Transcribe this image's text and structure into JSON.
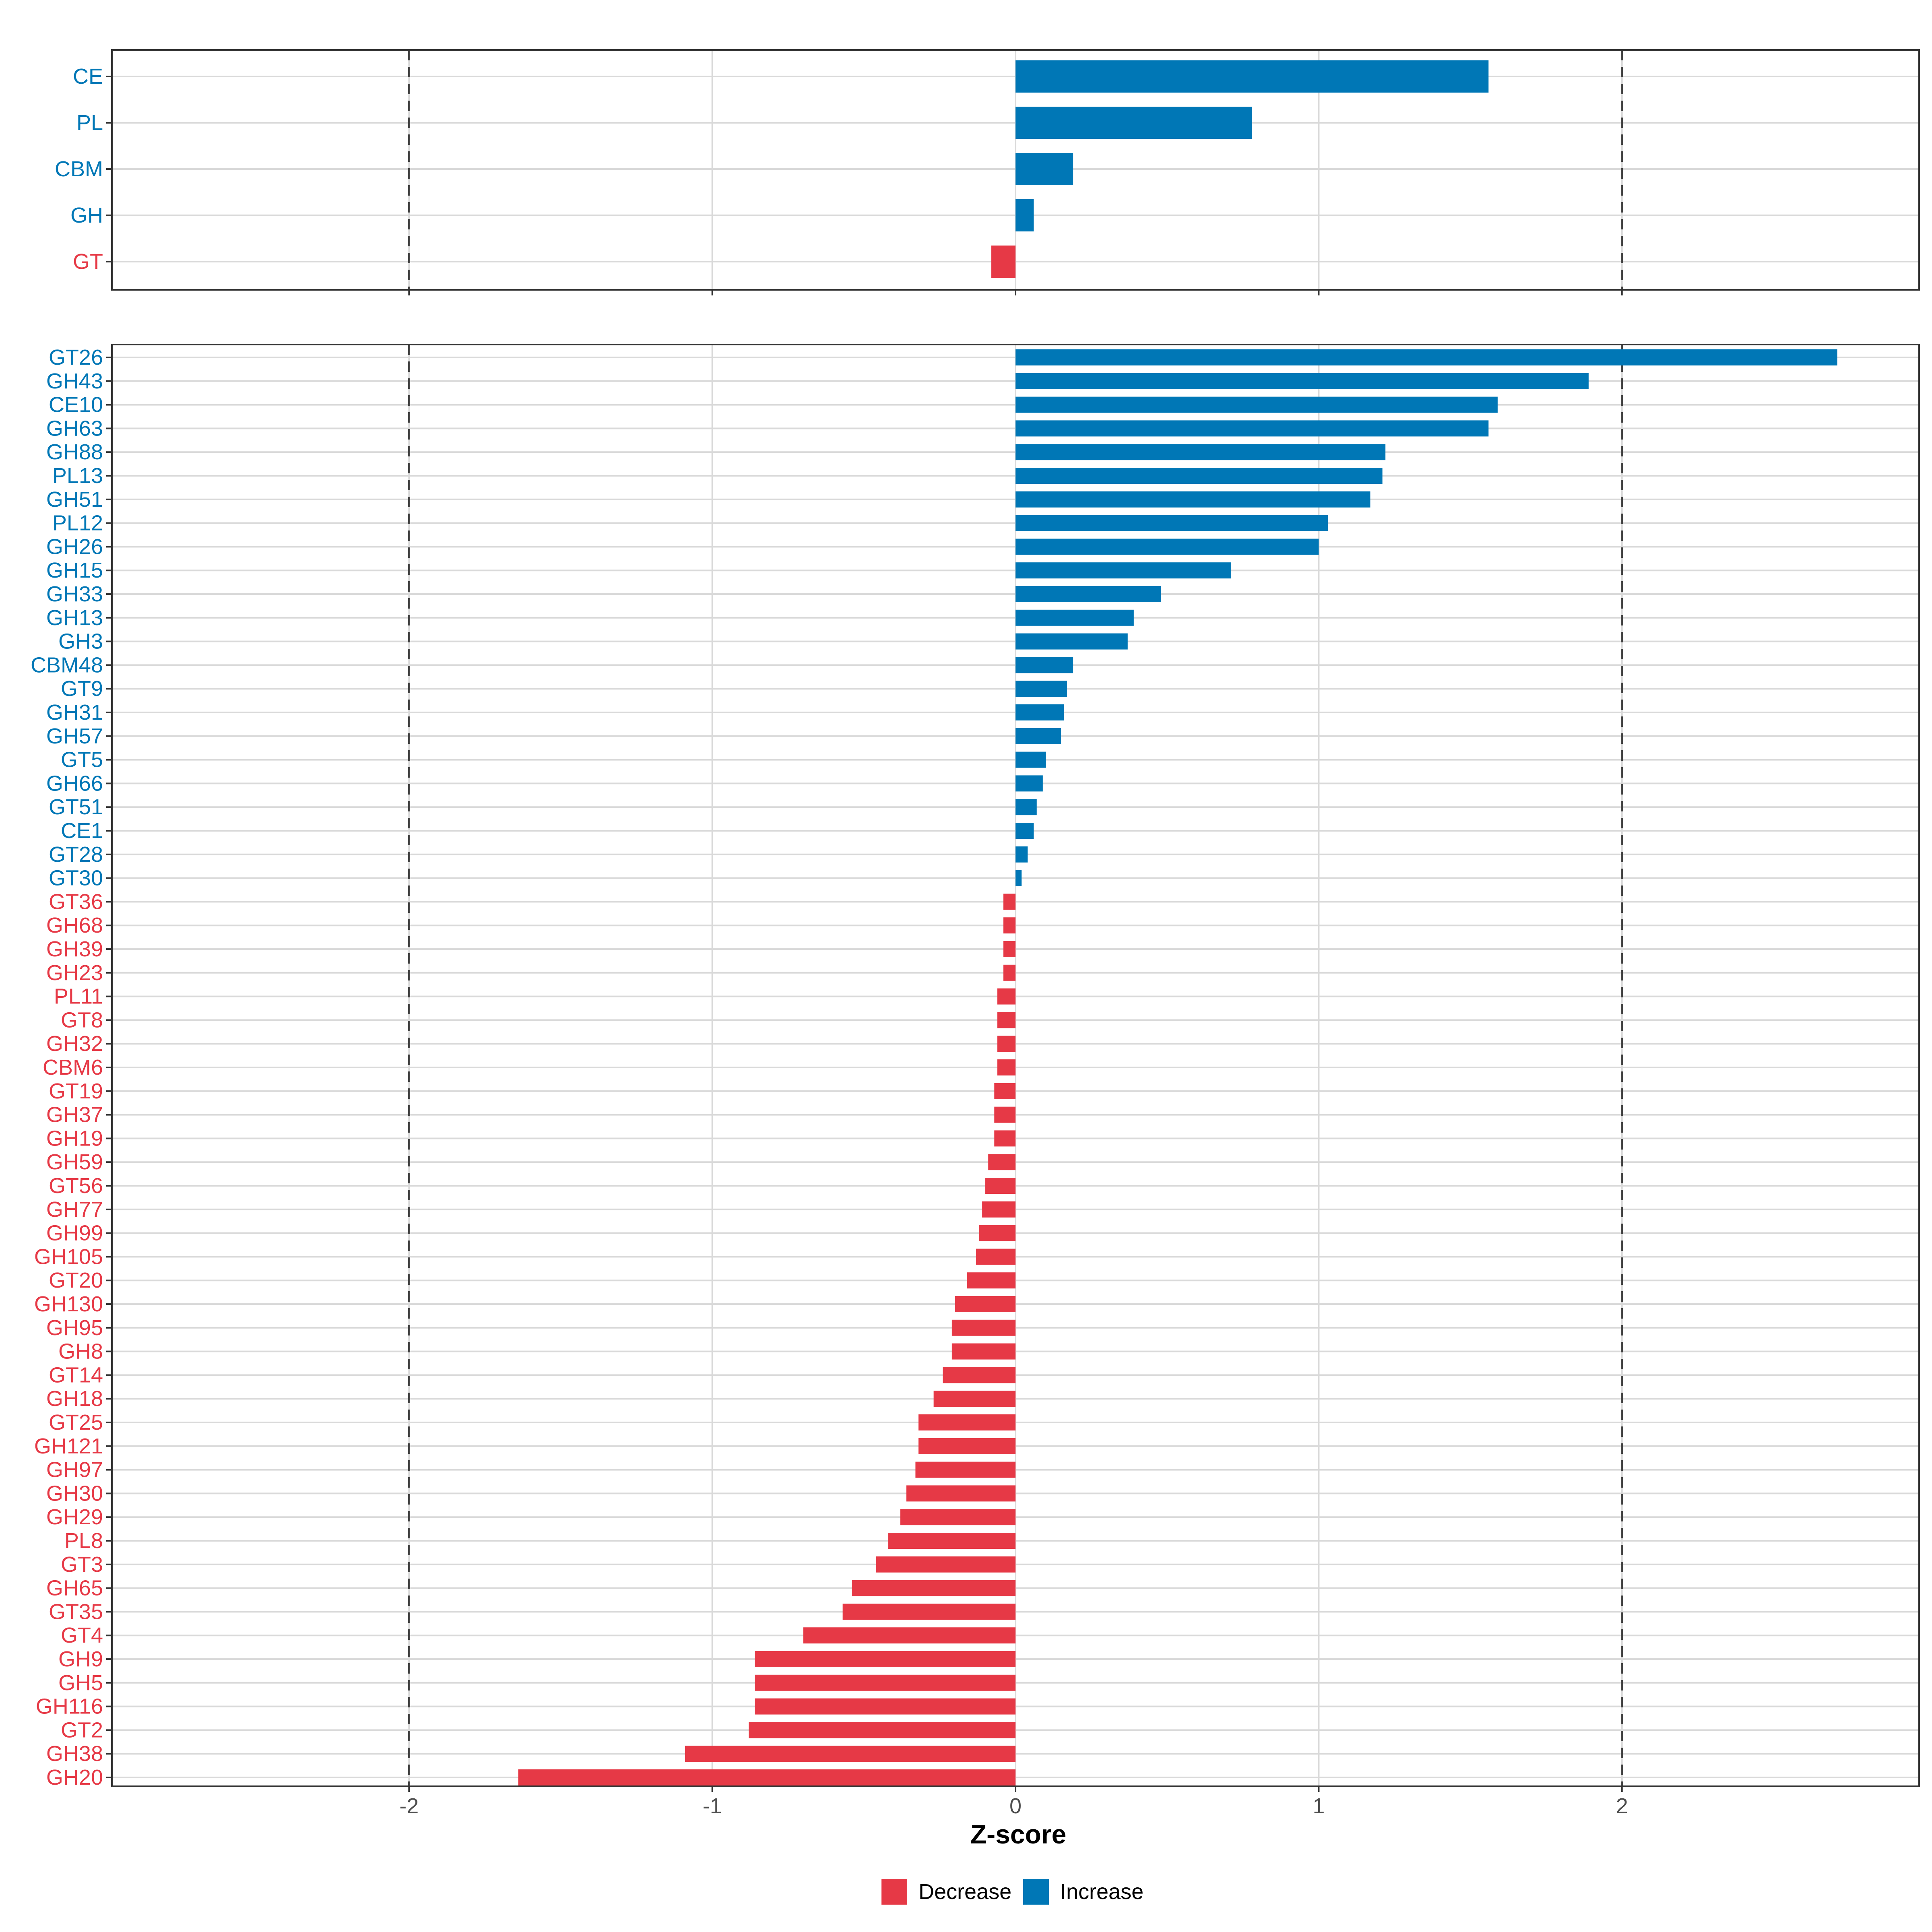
{
  "colors": {
    "decrease": "#E63946",
    "increase": "#0077B6",
    "grid": "#D9D9D9",
    "frame": "#333333",
    "refline": "#444444"
  },
  "chart_data": [
    {
      "type": "bar",
      "orientation": "horizontal",
      "categories": [
        "CE",
        "PL",
        "CBM",
        "GH",
        "GT"
      ],
      "values": [
        1.56,
        0.78,
        0.19,
        0.06,
        -0.08
      ],
      "xlim": [
        -2.98,
        2.98
      ],
      "reference_lines": [
        -2,
        2
      ]
    },
    {
      "type": "bar",
      "orientation": "horizontal",
      "categories": [
        "GT26",
        "GH43",
        "CE10",
        "GH63",
        "GH88",
        "PL13",
        "GH51",
        "PL12",
        "GH26",
        "GH15",
        "GH33",
        "GH13",
        "GH3",
        "CBM48",
        "GT9",
        "GH31",
        "GH57",
        "GT5",
        "GH66",
        "GT51",
        "CE1",
        "GT28",
        "GT30",
        "GT36",
        "GH68",
        "GH39",
        "GH23",
        "PL11",
        "GT8",
        "GH32",
        "CBM6",
        "GT19",
        "GH37",
        "GH19",
        "GH59",
        "GT56",
        "GH77",
        "GH99",
        "GH105",
        "GT20",
        "GH130",
        "GH95",
        "GH8",
        "GT14",
        "GH18",
        "GT25",
        "GH121",
        "GH97",
        "GH30",
        "GH29",
        "PL8",
        "GT3",
        "GH65",
        "GT35",
        "GT4",
        "GH9",
        "GH5",
        "GH116",
        "GT2",
        "GH38",
        "GH20"
      ],
      "values": [
        2.71,
        1.89,
        1.59,
        1.56,
        1.22,
        1.21,
        1.17,
        1.03,
        1.0,
        0.71,
        0.48,
        0.39,
        0.37,
        0.19,
        0.17,
        0.16,
        0.15,
        0.1,
        0.09,
        0.07,
        0.06,
        0.04,
        0.02,
        -0.04,
        -0.04,
        -0.04,
        -0.04,
        -0.06,
        -0.06,
        -0.06,
        -0.06,
        -0.07,
        -0.07,
        -0.07,
        -0.09,
        -0.1,
        -0.11,
        -0.12,
        -0.13,
        -0.16,
        -0.2,
        -0.21,
        -0.21,
        -0.24,
        -0.27,
        -0.32,
        -0.32,
        -0.33,
        -0.36,
        -0.38,
        -0.42,
        -0.46,
        -0.54,
        -0.57,
        -0.7,
        -0.86,
        -0.86,
        -0.86,
        -0.88,
        -1.09,
        -1.64
      ],
      "xlim": [
        -2.98,
        2.98
      ],
      "xticks": [
        -2,
        -1,
        0,
        1,
        2
      ],
      "xlabel": "Z-score",
      "reference_lines": [
        -2,
        2
      ]
    }
  ],
  "legend": {
    "position": "bottom",
    "items": [
      {
        "label": "Decrease",
        "color": "#E63946"
      },
      {
        "label": "Increase",
        "color": "#0077B6"
      }
    ]
  }
}
